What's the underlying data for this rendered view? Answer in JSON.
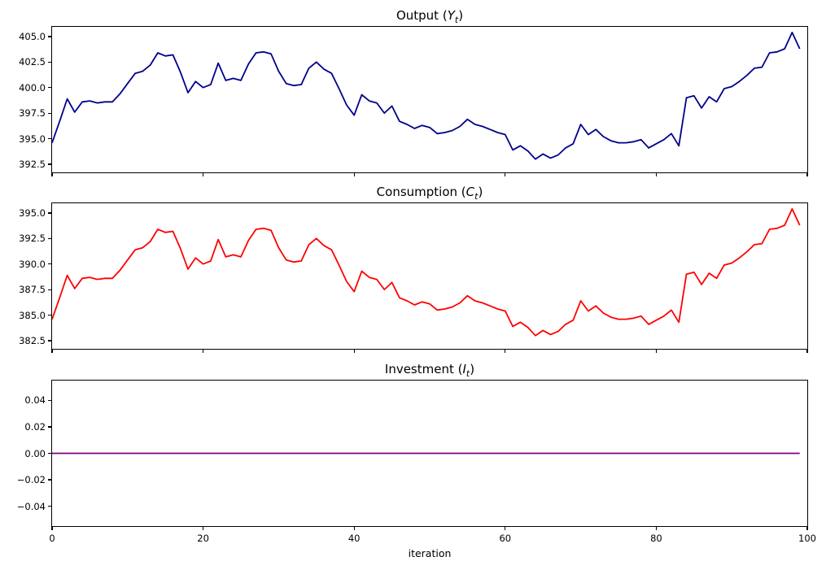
{
  "figure": {
    "xlabel": "iteration",
    "xlim": [
      0,
      100
    ],
    "xticks": [
      {
        "v": 0,
        "label": "0"
      },
      {
        "v": 20,
        "label": "20"
      },
      {
        "v": 40,
        "label": "40"
      },
      {
        "v": 60,
        "label": "60"
      },
      {
        "v": 80,
        "label": "80"
      },
      {
        "v": 100,
        "label": "100"
      }
    ]
  },
  "chart_data": [
    {
      "type": "line",
      "id": "output",
      "title": {
        "prefix": "Output (",
        "symbol": "Y",
        "sub": "t",
        "suffix": ")"
      },
      "line_color": "#00008B",
      "ylim": [
        391.7,
        405.95
      ],
      "yticks": [
        {
          "v": 405.0,
          "label": "405.0"
        },
        {
          "v": 402.5,
          "label": "402.5"
        },
        {
          "v": 400.0,
          "label": "400.0"
        },
        {
          "v": 397.5,
          "label": "397.5"
        },
        {
          "v": 395.0,
          "label": "395.0"
        },
        {
          "v": 392.5,
          "label": "392.5"
        }
      ],
      "show_x_tick_labels": false,
      "values": [
        394.6,
        396.7,
        398.9,
        397.6,
        398.6,
        398.7,
        398.5,
        398.6,
        398.6,
        399.4,
        400.4,
        401.4,
        401.6,
        402.2,
        403.4,
        403.1,
        403.2,
        401.5,
        399.5,
        400.6,
        400.0,
        400.3,
        402.4,
        400.7,
        400.9,
        400.7,
        402.3,
        403.4,
        403.5,
        403.3,
        401.6,
        400.4,
        400.2,
        400.3,
        401.9,
        402.5,
        401.8,
        401.4,
        399.9,
        398.3,
        397.3,
        399.3,
        398.7,
        398.5,
        397.5,
        398.2,
        396.7,
        396.4,
        396.0,
        396.3,
        396.1,
        395.5,
        395.6,
        395.8,
        396.2,
        396.9,
        396.4,
        396.2,
        395.9,
        395.6,
        395.4,
        393.9,
        394.3,
        393.8,
        393.0,
        393.5,
        393.1,
        393.4,
        394.1,
        394.5,
        396.4,
        395.4,
        395.9,
        395.2,
        394.8,
        394.6,
        394.6,
        394.7,
        394.9,
        394.1,
        394.5,
        394.9,
        395.5,
        394.3,
        399.0,
        399.2,
        398.0,
        399.1,
        398.6,
        399.9,
        400.1,
        400.6,
        401.2,
        401.9,
        402.0,
        403.4,
        403.5,
        403.8,
        405.4,
        403.8
      ]
    },
    {
      "type": "line",
      "id": "consumption",
      "title": {
        "prefix": "Consumption (",
        "symbol": "C",
        "sub": "t",
        "suffix": ")"
      },
      "line_color": "#FF0000",
      "ylim": [
        381.7,
        395.95
      ],
      "yticks": [
        {
          "v": 395.0,
          "label": "395.0"
        },
        {
          "v": 392.5,
          "label": "392.5"
        },
        {
          "v": 390.0,
          "label": "390.0"
        },
        {
          "v": 387.5,
          "label": "387.5"
        },
        {
          "v": 385.0,
          "label": "385.0"
        },
        {
          "v": 382.5,
          "label": "382.5"
        }
      ],
      "show_x_tick_labels": false,
      "values": [
        384.6,
        386.7,
        388.9,
        387.6,
        388.6,
        388.7,
        388.5,
        388.6,
        388.6,
        389.4,
        390.4,
        391.4,
        391.6,
        392.2,
        393.4,
        393.1,
        393.2,
        391.5,
        389.5,
        390.6,
        390.0,
        390.3,
        392.4,
        390.7,
        390.9,
        390.7,
        392.3,
        393.4,
        393.5,
        393.3,
        391.6,
        390.4,
        390.2,
        390.3,
        391.9,
        392.5,
        391.8,
        391.4,
        389.9,
        388.3,
        387.3,
        389.3,
        388.7,
        388.5,
        387.5,
        388.2,
        386.7,
        386.4,
        386.0,
        386.3,
        386.1,
        385.5,
        385.6,
        385.8,
        386.2,
        386.9,
        386.4,
        386.2,
        385.9,
        385.6,
        385.4,
        383.9,
        384.3,
        383.8,
        383.0,
        383.5,
        383.1,
        383.4,
        384.1,
        384.5,
        386.4,
        385.4,
        385.9,
        385.2,
        384.8,
        384.6,
        384.6,
        384.7,
        384.9,
        384.1,
        384.5,
        384.9,
        385.5,
        384.3,
        389.0,
        389.2,
        388.0,
        389.1,
        388.6,
        389.9,
        390.1,
        390.6,
        391.2,
        391.9,
        392.0,
        393.4,
        393.5,
        393.8,
        395.4,
        393.8
      ]
    },
    {
      "type": "line",
      "id": "investment",
      "title": {
        "prefix": "Investment (",
        "symbol": "I",
        "sub": "t",
        "suffix": ")"
      },
      "line_color": "#800080",
      "ylim": [
        -0.055,
        0.055
      ],
      "yticks": [
        {
          "v": 0.04,
          "label": "0.04"
        },
        {
          "v": 0.02,
          "label": "0.02"
        },
        {
          "v": 0.0,
          "label": "0.00"
        },
        {
          "v": -0.02,
          "label": "−0.02"
        },
        {
          "v": -0.04,
          "label": "−0.04"
        }
      ],
      "show_x_tick_labels": true,
      "values": [
        0,
        0,
        0,
        0,
        0,
        0,
        0,
        0,
        0,
        0,
        0,
        0,
        0,
        0,
        0,
        0,
        0,
        0,
        0,
        0,
        0,
        0,
        0,
        0,
        0,
        0,
        0,
        0,
        0,
        0,
        0,
        0,
        0,
        0,
        0,
        0,
        0,
        0,
        0,
        0,
        0,
        0,
        0,
        0,
        0,
        0,
        0,
        0,
        0,
        0,
        0,
        0,
        0,
        0,
        0,
        0,
        0,
        0,
        0,
        0,
        0,
        0,
        0,
        0,
        0,
        0,
        0,
        0,
        0,
        0,
        0,
        0,
        0,
        0,
        0,
        0,
        0,
        0,
        0,
        0,
        0,
        0,
        0,
        0,
        0,
        0,
        0,
        0,
        0,
        0,
        0,
        0,
        0,
        0,
        0,
        0,
        0,
        0,
        0,
        0
      ]
    }
  ]
}
